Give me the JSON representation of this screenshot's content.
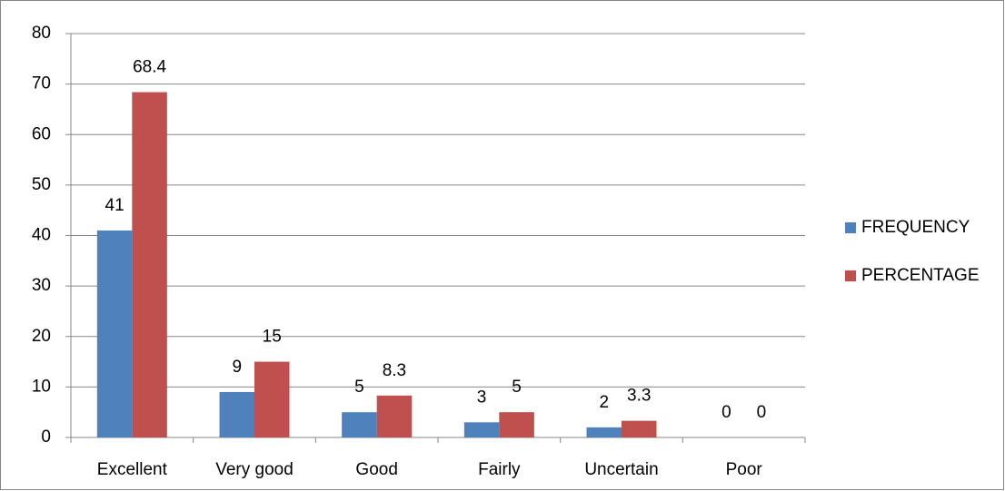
{
  "chart_data": {
    "type": "bar",
    "categories": [
      "Excellent",
      "Very good",
      "Good",
      "Fairly",
      "Uncertain",
      "Poor"
    ],
    "series": [
      {
        "name": "FREQUENCY",
        "color": "#4f81bd",
        "values": [
          41,
          9,
          5,
          3,
          2,
          0
        ]
      },
      {
        "name": "PERCENTAGE",
        "color": "#c0504d",
        "values": [
          68.4,
          15,
          8.3,
          5,
          3.3,
          0
        ]
      }
    ],
    "ylim": [
      0,
      80
    ],
    "yticks": [
      0,
      10,
      20,
      30,
      40,
      50,
      60,
      70,
      80
    ],
    "grid": true,
    "legend": "right"
  }
}
